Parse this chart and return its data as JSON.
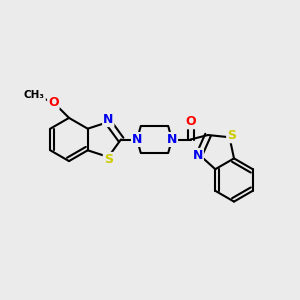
{
  "bg_color": "#ebebeb",
  "bond_color": "#000000",
  "bond_width": 1.5,
  "atom_colors": {
    "N": "#0000ee",
    "S": "#cccc00",
    "O": "#ff0000",
    "C": "#000000"
  },
  "font_size_atom": 9,
  "font_size_methoxy": 7.5,
  "fig_width": 3.0,
  "fig_height": 3.0,
  "xlim": [
    0,
    10
  ],
  "ylim": [
    0,
    10
  ]
}
